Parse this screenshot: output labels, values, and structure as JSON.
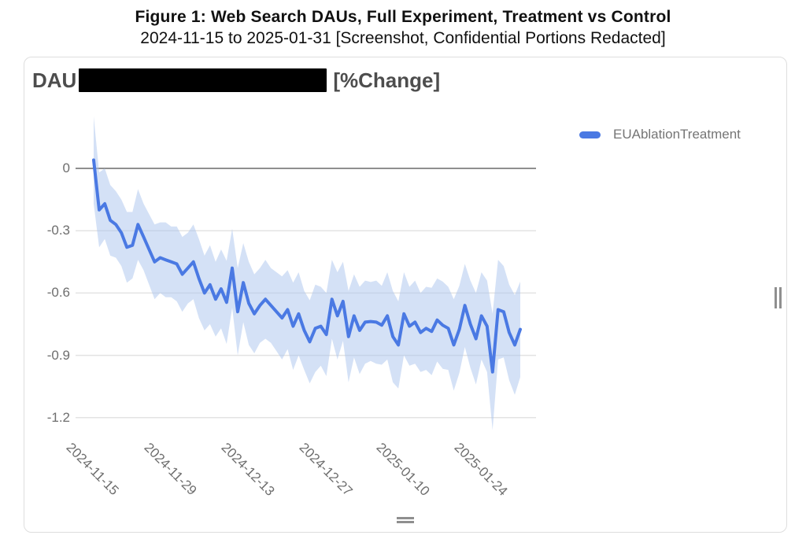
{
  "figure": {
    "title": "Figure 1: Web Search DAUs, Full Experiment, Treatment vs Control",
    "subtitle": "2024-11-15 to 2025-01-31 [Screenshot, Confidential Portions Redacted]"
  },
  "card": {
    "header": {
      "prefix": "DAU",
      "redaction": "[REDACTED]",
      "suffix": "[%Change]"
    },
    "legend": {
      "label": "EUAblationTreatment"
    }
  },
  "colors": {
    "line": "#4a79e3",
    "band": "#aac4ee",
    "zero_line": "#8f8f8f",
    "gridline": "#e3e3e3",
    "axis_text": "#6e6e6e",
    "header_text": "#4d4d4d",
    "legend_text": "#757575",
    "redaction": "#000000",
    "handle": "#8f8f8f",
    "card_border": "#dedede"
  },
  "chart_data": {
    "type": "line",
    "title": "DAU [REDACTED] [%Change]",
    "series_name": "EUAblationTreatment",
    "x_start": "2024-11-15",
    "x_end": "2025-01-31",
    "x_cadence": "daily",
    "ylabel": "%Change",
    "ylim": [
      -1.35,
      0.3
    ],
    "grid": true,
    "legend_position": "top-right",
    "y_ticks": [
      0,
      -0.3,
      -0.6,
      -0.9,
      -1.2
    ],
    "x_ticks": [
      {
        "label": "2024-11-15",
        "day": 0
      },
      {
        "label": "2024-11-29",
        "day": 14
      },
      {
        "label": "2024-12-13",
        "day": 28
      },
      {
        "label": "2024-12-27",
        "day": 42
      },
      {
        "label": "2025-01-10",
        "day": 56
      },
      {
        "label": "2025-01-24",
        "day": 70
      }
    ],
    "values": [
      0.04,
      -0.2,
      -0.17,
      -0.25,
      -0.27,
      -0.31,
      -0.38,
      -0.37,
      -0.27,
      -0.33,
      -0.39,
      -0.45,
      -0.43,
      -0.44,
      -0.45,
      -0.46,
      -0.51,
      -0.48,
      -0.45,
      -0.53,
      -0.6,
      -0.56,
      -0.63,
      -0.58,
      -0.645,
      -0.48,
      -0.69,
      -0.55,
      -0.65,
      -0.7,
      -0.66,
      -0.63,
      -0.66,
      -0.69,
      -0.72,
      -0.68,
      -0.76,
      -0.7,
      -0.78,
      -0.835,
      -0.77,
      -0.76,
      -0.8,
      -0.63,
      -0.71,
      -0.64,
      -0.81,
      -0.71,
      -0.78,
      -0.74,
      -0.737,
      -0.74,
      -0.755,
      -0.71,
      -0.81,
      -0.85,
      -0.7,
      -0.76,
      -0.74,
      -0.79,
      -0.77,
      -0.785,
      -0.73,
      -0.755,
      -0.77,
      -0.85,
      -0.775,
      -0.66,
      -0.75,
      -0.82,
      -0.71,
      -0.76,
      -0.98,
      -0.68,
      -0.69,
      -0.79,
      -0.85,
      -0.775
    ],
    "band_halfwidth": [
      0.21,
      0.18,
      0.17,
      0.17,
      0.16,
      0.16,
      0.17,
      0.16,
      0.17,
      0.16,
      0.17,
      0.18,
      0.17,
      0.18,
      0.17,
      0.18,
      0.18,
      0.17,
      0.18,
      0.19,
      0.18,
      0.19,
      0.18,
      0.19,
      0.2,
      0.19,
      0.21,
      0.19,
      0.2,
      0.19,
      0.18,
      0.19,
      0.18,
      0.19,
      0.2,
      0.19,
      0.21,
      0.2,
      0.19,
      0.2,
      0.21,
      0.19,
      0.2,
      0.19,
      0.21,
      0.19,
      0.22,
      0.2,
      0.21,
      0.2,
      0.19,
      0.2,
      0.19,
      0.21,
      0.22,
      0.21,
      0.2,
      0.19,
      0.2,
      0.19,
      0.2,
      0.21,
      0.2,
      0.21,
      0.2,
      0.22,
      0.21,
      0.2,
      0.21,
      0.22,
      0.21,
      0.22,
      0.28,
      0.24,
      0.22,
      0.23,
      0.24,
      0.23
    ]
  }
}
